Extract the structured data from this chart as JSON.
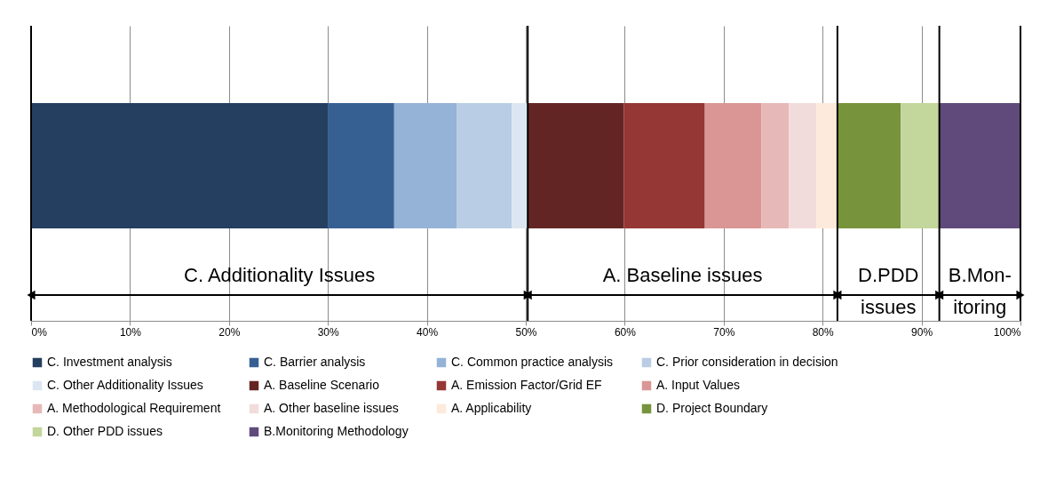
{
  "chart_data": {
    "type": "bar",
    "orientation": "horizontal",
    "stacked": true,
    "categories": [
      null
    ],
    "series": [
      {
        "name": "C. Investment analysis",
        "color": "#243f60",
        "values": [
          30.0
        ]
      },
      {
        "name": "C. Barrier analysis",
        "color": "#376092",
        "values": [
          6.7
        ]
      },
      {
        "name": "C. Common practice analysis",
        "color": "#95b3d7",
        "values": [
          6.3
        ]
      },
      {
        "name": "C. Prior consideration in decision",
        "color": "#b9cde5",
        "values": [
          5.6
        ]
      },
      {
        "name": "C. Other Additionality Issues",
        "color": "#dce6f2",
        "values": [
          1.6
        ]
      },
      {
        "name": "A. Baseline Scenario",
        "color": "#632523",
        "values": [
          9.7
        ]
      },
      {
        "name": "A. Emission Factor/Grid EF",
        "color": "#953735",
        "values": [
          8.2
        ]
      },
      {
        "name": "A. Input Values",
        "color": "#d99694",
        "values": [
          5.7
        ]
      },
      {
        "name": "A. Methodological Requirement",
        "color": "#e6b9b8",
        "values": [
          2.8
        ]
      },
      {
        "name": "A. Other baseline issues",
        "color": "#f2dcdb",
        "values": [
          2.8
        ]
      },
      {
        "name": "A. Applicability",
        "color": "#fdeada",
        "values": [
          2.1
        ]
      },
      {
        "name": "D. Project Boundary",
        "color": "#77933c",
        "values": [
          6.4
        ]
      },
      {
        "name": "D. Other PDD issues",
        "color": "#c3d69b",
        "values": [
          3.9
        ]
      },
      {
        "name": "B.Monitoring Methodology",
        "color": "#604a7b",
        "values": [
          8.2
        ]
      }
    ],
    "xlim": [
      0,
      100
    ],
    "xticks": [
      {
        "value": 0,
        "label": "0%"
      },
      {
        "value": 10,
        "label": "10%"
      },
      {
        "value": 20,
        "label": "20%"
      },
      {
        "value": 30,
        "label": "30%"
      },
      {
        "value": 40,
        "label": "40%"
      },
      {
        "value": 50,
        "label": "50%"
      },
      {
        "value": 60,
        "label": "60%"
      },
      {
        "value": 70,
        "label": "70%"
      },
      {
        "value": 80,
        "label": "80%"
      },
      {
        "value": 90,
        "label": "90%"
      },
      {
        "value": 100,
        "label": "100%"
      }
    ],
    "grid": "x",
    "legend": "bottom",
    "ref_lines": [
      {
        "axis": "x",
        "value": 0,
        "color": "#000000"
      },
      {
        "axis": "x",
        "value": 50.2,
        "color": "#000000"
      },
      {
        "axis": "x",
        "value": 81.5,
        "color": "#000000"
      },
      {
        "axis": "x",
        "value": 91.8,
        "color": "#000000"
      },
      {
        "axis": "x",
        "value": 100,
        "color": "#000000"
      }
    ],
    "annotations": [
      "C. Additionality Issues",
      "A. Baseline issues",
      "D.PDD\nissues",
      "B.Mon-\nitoring"
    ]
  }
}
